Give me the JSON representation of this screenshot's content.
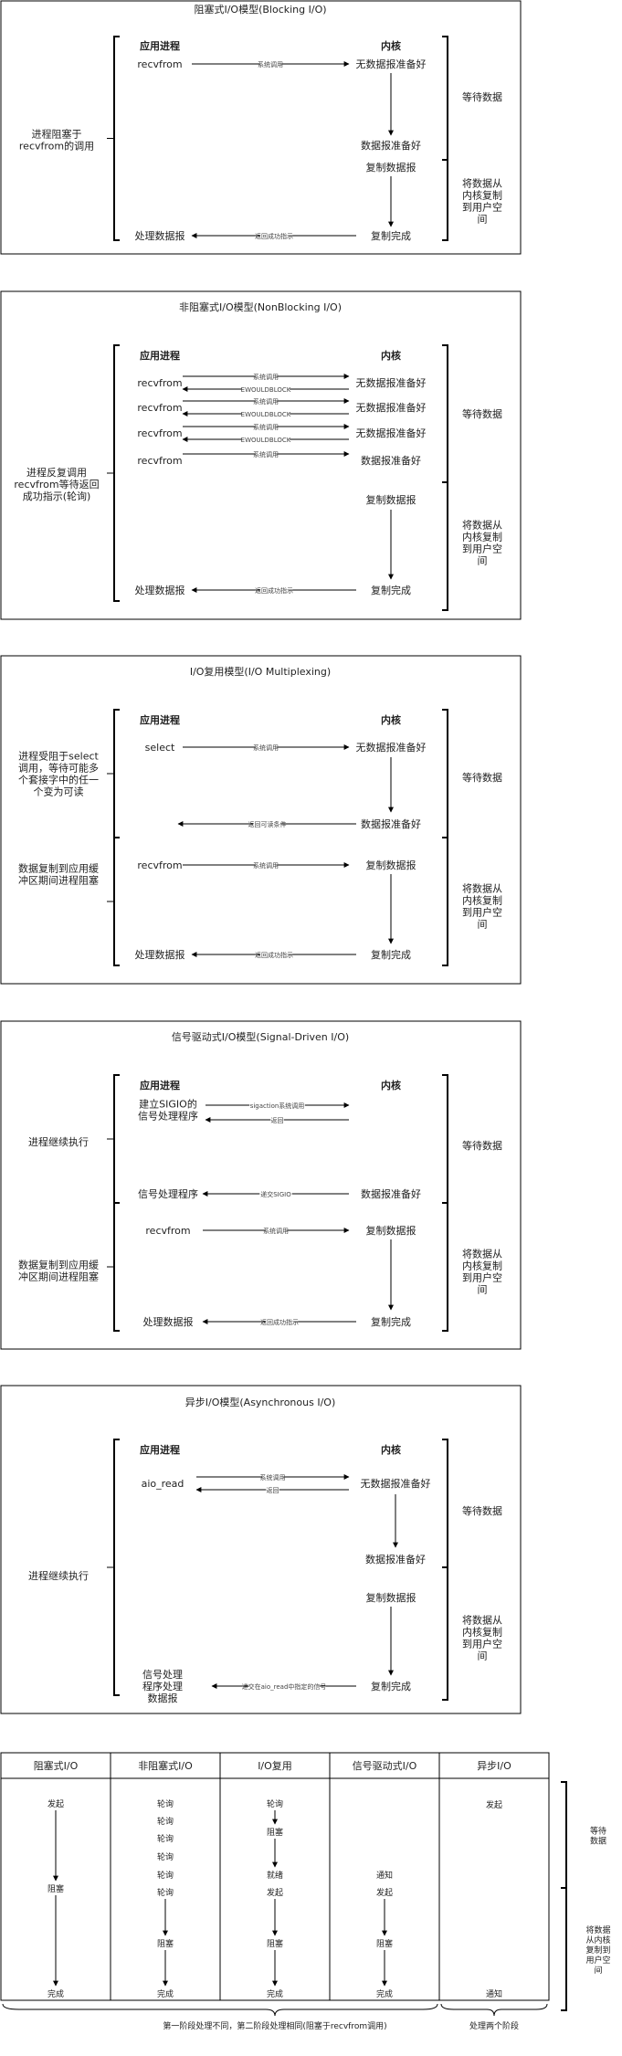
{
  "models": [
    {
      "title": "阻塞式I/O模型(Blocking I/O)",
      "app_header": "应用进程",
      "kernel_header": "内核",
      "left_notes": [
        "进程阻塞于\nrecvfrom的调用"
      ],
      "right_notes": [
        "等待数据",
        "将数据从\n内核复制\n到用户空\n间"
      ],
      "app_labels": [
        "recvfrom",
        "处理数据报"
      ],
      "kernel_labels": [
        "无数据报准备好",
        "数据报准备好",
        "复制数据报",
        "复制完成"
      ],
      "arrow_labels": [
        "系统调用",
        "返回成功指示"
      ]
    },
    {
      "title": "非阻塞式I/O模型(NonBlocking I/O)",
      "app_header": "应用进程",
      "kernel_header": "内核",
      "left_notes": [
        "进程反复调用\nrecvfrom等待返回\n成功指示(轮询)"
      ],
      "right_notes": [
        "等待数据",
        "将数据从\n内核复制\n到用户空\n间"
      ],
      "app_labels": [
        "recvfrom",
        "recvfrom",
        "recvfrom",
        "recvfrom",
        "处理数据报"
      ],
      "kernel_labels": [
        "无数据报准备好",
        "无数据报准备好",
        "无数据报准备好",
        "数据报准备好",
        "复制数据报",
        "复制完成"
      ],
      "arrow_labels": [
        "系统调用",
        "EWOULDBLOCK",
        "系统调用",
        "EWOULDBLOCK",
        "系统调用",
        "EWOULDBLOCK",
        "系统调用",
        "返回成功指示"
      ]
    },
    {
      "title": "I/O复用模型(I/O Multiplexing)",
      "app_header": "应用进程",
      "kernel_header": "内核",
      "left_notes": [
        "进程受阻于select\n调用，等待可能多\n个套接字中的任一\n个变为可读",
        "数据复制到应用缓\n冲区期间进程阻塞"
      ],
      "right_notes": [
        "等待数据",
        "将数据从\n内核复制\n到用户空\n间"
      ],
      "app_labels": [
        "select",
        "recvfrom",
        "处理数据报"
      ],
      "kernel_labels": [
        "无数据报准备好",
        "数据报准备好",
        "复制数据报",
        "复制完成"
      ],
      "arrow_labels": [
        "系统调用",
        "返回可读条件",
        "系统调用",
        "返回成功指示"
      ]
    },
    {
      "title": "信号驱动式I/O模型(Signal-Driven I/O)",
      "app_header": "应用进程",
      "kernel_header": "内核",
      "left_notes": [
        "进程继续执行",
        "数据复制到应用缓\n冲区期间进程阻塞"
      ],
      "right_notes": [
        "等待数据",
        "将数据从\n内核复制\n到用户空\n间"
      ],
      "app_labels": [
        "建立SIGIO的\n信号处理程序",
        "信号处理程序",
        "recvfrom",
        "处理数据报"
      ],
      "kernel_labels": [
        "数据报准备好",
        "复制数据报",
        "复制完成"
      ],
      "arrow_labels": [
        "sigaction系统调用",
        "返回",
        "递交SIGIO",
        "系统调用",
        "返回成功指示"
      ]
    },
    {
      "title": "异步I/O模型(Asynchronous I/O)",
      "app_header": "应用进程",
      "kernel_header": "内核",
      "left_notes": [
        "进程继续执行"
      ],
      "right_notes": [
        "等待数据",
        "将数据从\n内核复制\n到用户空\n间"
      ],
      "app_labels": [
        "aio_read",
        "信号处理\n程序处理\n数据报"
      ],
      "kernel_labels": [
        "无数据报准备好",
        "数据报准备好",
        "复制数据报",
        "复制完成"
      ],
      "arrow_labels": [
        "系统调用",
        "返回",
        "递交在aio_read中指定的信号"
      ]
    }
  ],
  "comparison": {
    "headers": [
      "阻塞式I/O",
      "非阻塞式I/O",
      "I/O复用",
      "信号驱动式I/O",
      "异步I/O"
    ],
    "col_blocking": [
      "发起",
      "阻塞",
      "完成"
    ],
    "col_nonblocking": [
      "轮询",
      "轮询",
      "轮询",
      "轮询",
      "轮询",
      "轮询",
      "阻塞",
      "完成"
    ],
    "col_multiplexing": [
      "轮询",
      "阻塞",
      "就绪",
      "发起",
      "阻塞",
      "完成"
    ],
    "col_signal": [
      "通知",
      "发起",
      "阻塞",
      "完成"
    ],
    "col_async": [
      "发起",
      "通知"
    ],
    "right_notes": [
      "等待\n数据",
      "将数据\n从内核\n复制到\n用户空\n间"
    ],
    "footer_left": "第一阶段处理不同，第二阶段处理相同(阻塞于recvfrom调用)",
    "footer_right": "处理两个阶段"
  }
}
